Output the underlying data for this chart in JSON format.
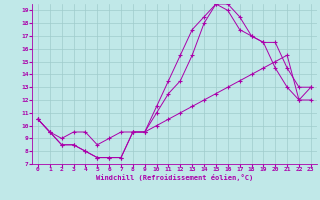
{
  "xlabel": "Windchill (Refroidissement éolien,°C)",
  "background_color": "#c0e8e8",
  "grid_color": "#a0cccc",
  "line_color": "#aa00aa",
  "xlim": [
    -0.5,
    23.5
  ],
  "ylim": [
    7,
    19.5
  ],
  "xticks": [
    0,
    1,
    2,
    3,
    4,
    5,
    6,
    7,
    8,
    9,
    10,
    11,
    12,
    13,
    14,
    15,
    16,
    17,
    18,
    19,
    20,
    21,
    22,
    23
  ],
  "yticks": [
    7,
    8,
    9,
    10,
    11,
    12,
    13,
    14,
    15,
    16,
    17,
    18,
    19
  ],
  "line1_x": [
    0,
    1,
    2,
    3,
    4,
    5,
    6,
    7,
    8,
    9,
    10,
    11,
    12,
    13,
    14,
    15,
    16,
    17,
    18,
    19,
    20,
    21,
    22,
    23
  ],
  "line1_y": [
    10.5,
    9.5,
    8.5,
    8.5,
    8.0,
    7.5,
    7.5,
    7.5,
    9.5,
    9.5,
    11.5,
    13.5,
    15.5,
    17.5,
    18.5,
    19.5,
    19.5,
    18.5,
    17.0,
    16.5,
    14.5,
    13.0,
    12.0,
    13.0
  ],
  "line2_x": [
    0,
    1,
    2,
    3,
    4,
    5,
    6,
    7,
    8,
    9,
    10,
    11,
    12,
    13,
    14,
    15,
    16,
    17,
    18,
    19,
    20,
    21,
    22,
    23
  ],
  "line2_y": [
    10.5,
    9.5,
    8.5,
    8.5,
    8.0,
    7.5,
    7.5,
    7.5,
    9.5,
    9.5,
    11.0,
    12.5,
    13.5,
    15.5,
    18.0,
    19.5,
    19.0,
    17.5,
    17.0,
    16.5,
    16.5,
    14.5,
    13.0,
    13.0
  ],
  "line3_x": [
    0,
    1,
    2,
    3,
    4,
    5,
    6,
    7,
    8,
    9,
    10,
    11,
    12,
    13,
    14,
    15,
    16,
    17,
    18,
    19,
    20,
    21,
    22,
    23
  ],
  "line3_y": [
    10.5,
    9.5,
    9.0,
    9.5,
    9.5,
    8.5,
    9.0,
    9.5,
    9.5,
    9.5,
    10.0,
    10.5,
    11.0,
    11.5,
    12.0,
    12.5,
    13.0,
    13.5,
    14.0,
    14.5,
    15.0,
    15.5,
    12.0,
    12.0
  ]
}
